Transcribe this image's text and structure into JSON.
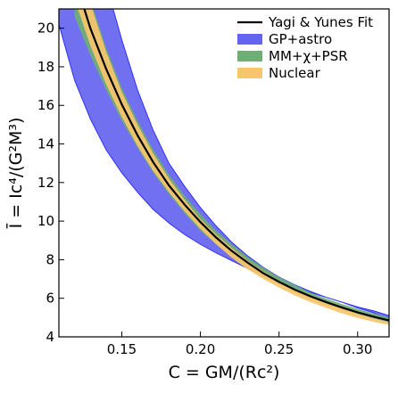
{
  "chart_data": {
    "type": "area",
    "xlabel": "C = GM/(Rc²)",
    "ylabel": "Ī = Ic⁴/(G²M³)",
    "xlim": [
      0.11,
      0.32
    ],
    "ylim": [
      4,
      21
    ],
    "xticks": [
      0.15,
      0.2,
      0.25,
      0.3
    ],
    "xtick_labels": [
      "0.15",
      "0.20",
      "0.25",
      "0.30"
    ],
    "yticks": [
      4,
      6,
      8,
      10,
      12,
      14,
      16,
      18,
      20
    ],
    "ytick_labels": [
      "4",
      "6",
      "8",
      "10",
      "12",
      "14",
      "16",
      "18",
      "20"
    ],
    "legend_position": "top-right",
    "grid": false,
    "series": [
      {
        "name": "GP+astro",
        "kind": "band",
        "color": "#6464f0",
        "edge_color": "#3030ff",
        "x": [
          0.11,
          0.12,
          0.13,
          0.14,
          0.15,
          0.16,
          0.17,
          0.18,
          0.19,
          0.2,
          0.21,
          0.22,
          0.23,
          0.24,
          0.25,
          0.26,
          0.27,
          0.28,
          0.29,
          0.3,
          0.31,
          0.32
        ],
        "lower": [
          20.2,
          17.3,
          15.3,
          13.7,
          12.5,
          11.5,
          10.6,
          9.9,
          9.3,
          8.8,
          8.35,
          7.95,
          7.55,
          7.2,
          6.9,
          6.6,
          6.3,
          6.05,
          5.8,
          5.5,
          5.25,
          4.85
        ],
        "upper": [
          23.4,
          23.4,
          23.4,
          22.3,
          19.4,
          16.8,
          14.7,
          13.0,
          11.8,
          10.7,
          9.75,
          8.9,
          8.2,
          7.6,
          7.1,
          6.7,
          6.35,
          6.05,
          5.8,
          5.55,
          5.35,
          5.1
        ]
      },
      {
        "name": "MM+χ+PSR",
        "kind": "band",
        "color": "#6fae74",
        "x": [
          0.12,
          0.13,
          0.14,
          0.15,
          0.16,
          0.17,
          0.18,
          0.19,
          0.2,
          0.21,
          0.22,
          0.23,
          0.24,
          0.25,
          0.26,
          0.27,
          0.28,
          0.29,
          0.3,
          0.31,
          0.32
        ],
        "lower": [
          20.6,
          18.6,
          16.8,
          15.2,
          13.8,
          12.5,
          11.4,
          10.4,
          9.5,
          8.8,
          8.15,
          7.6,
          7.1,
          6.7,
          6.3,
          5.95,
          5.65,
          5.4,
          5.15,
          4.95,
          4.75
        ],
        "upper": [
          23.4,
          21.5,
          19.0,
          16.9,
          15.2,
          13.7,
          12.4,
          11.3,
          10.35,
          9.5,
          8.8,
          8.15,
          7.6,
          7.1,
          6.7,
          6.3,
          5.98,
          5.7,
          5.45,
          5.22,
          5.0
        ]
      },
      {
        "name": "Nuclear",
        "kind": "band",
        "color": "#f7c56c",
        "x": [
          0.12,
          0.13,
          0.14,
          0.15,
          0.16,
          0.17,
          0.18,
          0.19,
          0.2,
          0.21,
          0.22,
          0.23,
          0.24,
          0.25,
          0.26,
          0.27,
          0.28,
          0.29,
          0.3,
          0.31,
          0.32
        ],
        "lower": [
          21.5,
          19.1,
          17.1,
          15.4,
          13.9,
          12.6,
          11.5,
          10.5,
          9.6,
          8.8,
          8.1,
          7.5,
          7.0,
          6.55,
          6.15,
          5.8,
          5.5,
          5.22,
          4.98,
          4.78,
          4.62
        ],
        "upper": [
          23.4,
          21.3,
          18.8,
          16.7,
          15.0,
          13.5,
          12.2,
          11.1,
          10.1,
          9.3,
          8.6,
          7.95,
          7.4,
          6.9,
          6.48,
          6.1,
          5.78,
          5.48,
          5.2,
          4.96,
          4.74
        ]
      },
      {
        "name": "Yagi & Yunes Fit",
        "kind": "line",
        "color": "#000000",
        "x": [
          0.12,
          0.125,
          0.13,
          0.14,
          0.15,
          0.16,
          0.17,
          0.18,
          0.19,
          0.2,
          0.21,
          0.22,
          0.23,
          0.24,
          0.25,
          0.26,
          0.27,
          0.28,
          0.29,
          0.3,
          0.31,
          0.32
        ],
        "y": [
          22.8,
          21.3,
          20.0,
          17.9,
          16.05,
          14.45,
          13.05,
          11.85,
          10.85,
          9.95,
          9.15,
          8.45,
          7.85,
          7.3,
          6.85,
          6.45,
          6.1,
          5.8,
          5.52,
          5.27,
          5.05,
          4.85
        ]
      }
    ],
    "legend": [
      {
        "label": "Yagi & Yunes Fit",
        "kind": "line",
        "color": "#000000"
      },
      {
        "label": "GP+astro",
        "kind": "patch",
        "color": "#6464f0"
      },
      {
        "label": "MM+χ+PSR",
        "kind": "patch",
        "color": "#6fae74"
      },
      {
        "label": "Nuclear",
        "kind": "patch",
        "color": "#f7c56c"
      }
    ]
  }
}
